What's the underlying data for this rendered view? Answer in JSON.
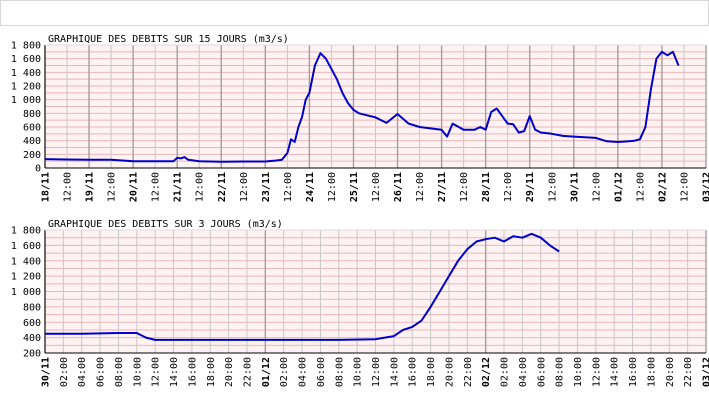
{
  "page": {
    "topbar": ""
  },
  "chart_data": [
    {
      "type": "line",
      "title": "GRAPHIQUE DES DEBITS SUR 15 JOURS (m3/s)",
      "ylim": [
        0,
        1800
      ],
      "y_ticks": [
        "0",
        "200",
        "400",
        "600",
        "800",
        "1 000",
        "1 200",
        "1 400",
        "1 600",
        "1 800"
      ],
      "y_tick_values": [
        0,
        200,
        400,
        600,
        800,
        1000,
        1200,
        1400,
        1600,
        1800
      ],
      "xlim": [
        "18/11 00:00",
        "03/12 00:00"
      ],
      "x_ticks": [
        {
          "label": "18/11",
          "bold": true
        },
        {
          "label": "12:00",
          "bold": false
        },
        {
          "label": "19/11",
          "bold": true
        },
        {
          "label": "12:00",
          "bold": false
        },
        {
          "label": "20/11",
          "bold": true
        },
        {
          "label": "12:00",
          "bold": false
        },
        {
          "label": "21/11",
          "bold": true
        },
        {
          "label": "12:00",
          "bold": false
        },
        {
          "label": "22/11",
          "bold": true
        },
        {
          "label": "12:00",
          "bold": false
        },
        {
          "label": "23/11",
          "bold": true
        },
        {
          "label": "12:00",
          "bold": false
        },
        {
          "label": "24/11",
          "bold": true
        },
        {
          "label": "12:00",
          "bold": false
        },
        {
          "label": "25/11",
          "bold": true
        },
        {
          "label": "12:00",
          "bold": false
        },
        {
          "label": "26/11",
          "bold": true
        },
        {
          "label": "12:00",
          "bold": false
        },
        {
          "label": "27/11",
          "bold": true
        },
        {
          "label": "12:00",
          "bold": false
        },
        {
          "label": "28/11",
          "bold": true
        },
        {
          "label": "12:00",
          "bold": false
        },
        {
          "label": "29/11",
          "bold": true
        },
        {
          "label": "12:00",
          "bold": false
        },
        {
          "label": "30/11",
          "bold": true
        },
        {
          "label": "12:00",
          "bold": false
        },
        {
          "label": "01/12",
          "bold": true
        },
        {
          "label": "12:00",
          "bold": false
        },
        {
          "label": "02/12",
          "bold": true
        },
        {
          "label": "12:00",
          "bold": false
        },
        {
          "label": "03/12",
          "bold": true
        }
      ],
      "line_color": "#0000cc",
      "grid": true,
      "series": [
        {
          "x": [
            "18/11 00:00",
            "18/11 12:00",
            "19/11 00:00",
            "19/11 12:00",
            "20/11 00:00",
            "20/11 12:00",
            "20/11 22:00",
            "21/11 00:00",
            "21/11 02:00",
            "21/11 04:00",
            "21/11 06:00",
            "21/11 12:00",
            "22/11 00:00",
            "22/11 12:00",
            "23/11 00:00",
            "23/11 06:00",
            "23/11 09:00",
            "23/11 12:00",
            "23/11 14:00",
            "23/11 16:00",
            "23/11 18:00",
            "23/11 20:00",
            "23/11 22:00",
            "24/11 00:00",
            "24/11 03:00",
            "24/11 06:00",
            "24/11 09:00",
            "24/11 12:00",
            "24/11 15:00",
            "24/11 18:00",
            "24/11 21:00",
            "25/11 00:00",
            "25/11 03:00",
            "25/11 06:00",
            "25/11 12:00",
            "25/11 18:00",
            "26/11 00:00",
            "26/11 03:00",
            "26/11 06:00",
            "26/11 12:00",
            "26/11 18:00",
            "27/11 00:00",
            "27/11 03:00",
            "27/11 06:00",
            "27/11 12:00",
            "27/11 18:00",
            "27/11 21:00",
            "28/11 00:00",
            "28/11 03:00",
            "28/11 06:00",
            "28/11 09:00",
            "28/11 12:00",
            "28/11 15:00",
            "28/11 18:00",
            "28/11 21:00",
            "29/11 00:00",
            "29/11 03:00",
            "29/11 06:00",
            "29/11 12:00",
            "29/11 18:00",
            "30/11 00:00",
            "30/11 06:00",
            "30/11 12:00",
            "30/11 18:00",
            "01/12 00:00",
            "01/12 06:00",
            "01/12 09:00",
            "01/12 12:00",
            "01/12 15:00",
            "01/12 18:00",
            "01/12 21:00",
            "02/12 00:00",
            "02/12 03:00",
            "02/12 06:00",
            "02/12 09:00"
          ],
          "y": [
            130,
            125,
            120,
            120,
            100,
            100,
            100,
            150,
            140,
            160,
            120,
            100,
            90,
            95,
            95,
            110,
            120,
            220,
            420,
            380,
            600,
            750,
            1000,
            1100,
            1500,
            1680,
            1600,
            1450,
            1300,
            1100,
            950,
            850,
            800,
            780,
            740,
            660,
            790,
            720,
            650,
            600,
            580,
            560,
            460,
            650,
            560,
            560,
            600,
            560,
            820,
            870,
            760,
            650,
            640,
            520,
            540,
            760,
            560,
            520,
            500,
            470,
            460,
            450,
            440,
            390,
            380,
            390,
            400,
            420,
            600,
            1150,
            1600,
            1700,
            1650,
            1700,
            1500
          ]
        }
      ]
    },
    {
      "type": "line",
      "title": "GRAPHIQUE DES DEBITS SUR 3 JOURS (m3/s)",
      "ylim": [
        200,
        1800
      ],
      "y_ticks": [
        "200",
        "400",
        "600",
        "800",
        "1 000",
        "1 200",
        "1 400",
        "1 600",
        "1 800"
      ],
      "y_tick_values": [
        200,
        400,
        600,
        800,
        1000,
        1200,
        1400,
        1600,
        1800
      ],
      "xlim": [
        "30/11 00:00",
        "03/12 00:00"
      ],
      "x_ticks": [
        {
          "label": "30/11",
          "bold": true
        },
        {
          "label": "02:00",
          "bold": false
        },
        {
          "label": "04:00",
          "bold": false
        },
        {
          "label": "06:00",
          "bold": false
        },
        {
          "label": "08:00",
          "bold": false
        },
        {
          "label": "10:00",
          "bold": false
        },
        {
          "label": "12:00",
          "bold": false
        },
        {
          "label": "14:00",
          "bold": false
        },
        {
          "label": "16:00",
          "bold": false
        },
        {
          "label": "18:00",
          "bold": false
        },
        {
          "label": "20:00",
          "bold": false
        },
        {
          "label": "22:00",
          "bold": false
        },
        {
          "label": "01/12",
          "bold": true
        },
        {
          "label": "02:00",
          "bold": false
        },
        {
          "label": "04:00",
          "bold": false
        },
        {
          "label": "06:00",
          "bold": false
        },
        {
          "label": "08:00",
          "bold": false
        },
        {
          "label": "10:00",
          "bold": false
        },
        {
          "label": "12:00",
          "bold": false
        },
        {
          "label": "14:00",
          "bold": false
        },
        {
          "label": "16:00",
          "bold": false
        },
        {
          "label": "18:00",
          "bold": false
        },
        {
          "label": "20:00",
          "bold": false
        },
        {
          "label": "22:00",
          "bold": false
        },
        {
          "label": "02/12",
          "bold": true
        },
        {
          "label": "02:00",
          "bold": false
        },
        {
          "label": "04:00",
          "bold": false
        },
        {
          "label": "06:00",
          "bold": false
        },
        {
          "label": "08:00",
          "bold": false
        },
        {
          "label": "10:00",
          "bold": false
        },
        {
          "label": "12:00",
          "bold": false
        },
        {
          "label": "14:00",
          "bold": false
        },
        {
          "label": "16:00",
          "bold": false
        },
        {
          "label": "18:00",
          "bold": false
        },
        {
          "label": "20:00",
          "bold": false
        },
        {
          "label": "22:00",
          "bold": false
        },
        {
          "label": "03/12",
          "bold": true
        }
      ],
      "line_color": "#0000cc",
      "grid": true,
      "series": [
        {
          "x": [
            "30/11 00:00",
            "30/11 04:00",
            "30/11 08:00",
            "30/11 10:00",
            "30/11 11:00",
            "30/11 12:00",
            "30/11 16:00",
            "30/11 20:00",
            "01/12 00:00",
            "01/12 04:00",
            "01/12 08:00",
            "01/12 12:00",
            "01/12 14:00",
            "01/12 15:00",
            "01/12 16:00",
            "01/12 17:00",
            "01/12 18:00",
            "01/12 19:00",
            "01/12 20:00",
            "01/12 21:00",
            "01/12 22:00",
            "01/12 23:00",
            "02/12 00:00",
            "02/12 01:00",
            "02/12 02:00",
            "02/12 03:00",
            "02/12 04:00",
            "02/12 05:00",
            "02/12 06:00",
            "02/12 07:00",
            "02/12 08:00"
          ],
          "y": [
            450,
            450,
            460,
            460,
            400,
            370,
            370,
            370,
            370,
            370,
            370,
            380,
            420,
            500,
            540,
            620,
            800,
            1000,
            1200,
            1400,
            1550,
            1650,
            1680,
            1700,
            1650,
            1720,
            1700,
            1750,
            1700,
            1600,
            1520
          ]
        }
      ]
    }
  ]
}
